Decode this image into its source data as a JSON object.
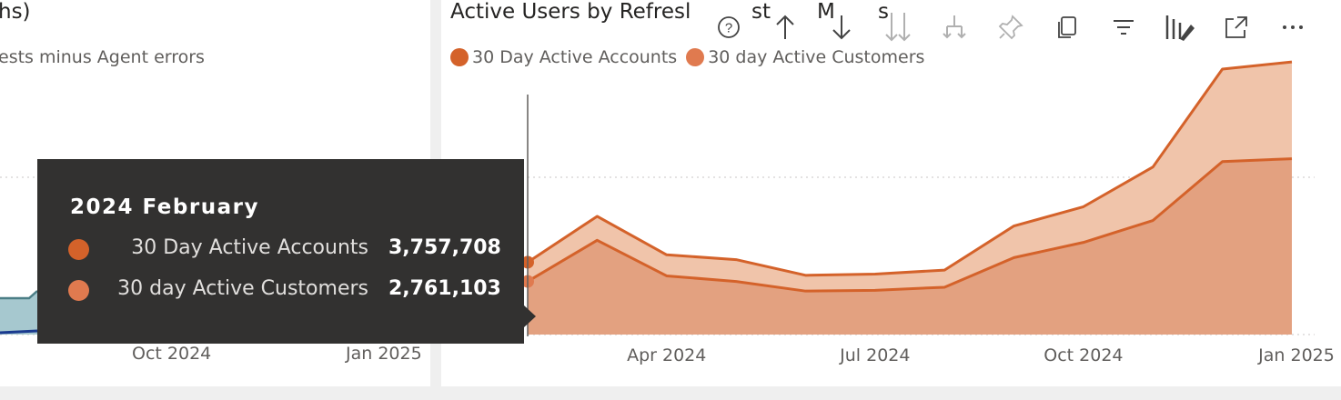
{
  "left_visual": {
    "title_fragment": "hs)",
    "subtitle_fragment": "ests minus Agent errors",
    "x_ticks": [
      "Oct 2024",
      "Jan 2025"
    ],
    "series_colors": [
      "#118dff",
      "#1a3a8f",
      "#4b7e86"
    ]
  },
  "right_visual": {
    "title": "Active Users by Refresh Date (Last 12 Months)",
    "title_visible": "Active Users by Refresl",
    "title_tail_a": "st",
    "title_tail_b": "M",
    "title_tail_c": "s",
    "legend": [
      {
        "label": "30 Day Active Accounts",
        "color": "#d4622a"
      },
      {
        "label": "30 day Active Customers",
        "color": "#e07a4f"
      }
    ]
  },
  "toolbar": {
    "icons": [
      {
        "name": "help-icon",
        "label": "?"
      },
      {
        "name": "drill-up-icon",
        "label": "↑"
      },
      {
        "name": "drill-down-icon",
        "label": "↓"
      },
      {
        "name": "expand-all-down-icon",
        "label": "↓↓"
      },
      {
        "name": "expand-hierarchy-icon",
        "label": "⑂"
      },
      {
        "name": "pin-icon",
        "label": "📌"
      },
      {
        "name": "copy-icon",
        "label": "❐"
      },
      {
        "name": "filter-icon",
        "label": "≡"
      },
      {
        "name": "format-visual-icon",
        "label": "✎"
      },
      {
        "name": "focus-mode-icon",
        "label": "⤢"
      },
      {
        "name": "more-options-icon",
        "label": "⋯"
      }
    ]
  },
  "tooltip": {
    "title": "2024 February",
    "rows": [
      {
        "label": "30 Day Active Accounts",
        "value": "3,757,708",
        "color": "#d4622a"
      },
      {
        "label": "30 day Active Customers",
        "value": "2,761,103",
        "color": "#e07a4f"
      }
    ]
  },
  "chart_data": {
    "type": "area",
    "title": "Active Users by Refresh Date (Last 12 Months)",
    "x": [
      "2024-02",
      "2024-03",
      "2024-04",
      "2024-05",
      "2024-06",
      "2024-07",
      "2024-08",
      "2024-09",
      "2024-10",
      "2024-11",
      "2024-12",
      "2025-01"
    ],
    "x_tick_labels": [
      "Apr 2024",
      "Jul 2024",
      "Oct 2024",
      "Jan 2025"
    ],
    "series": [
      {
        "name": "30 Day Active Accounts",
        "color": "#d4622a",
        "values": [
          3757708,
          6145000,
          4145000,
          3895000,
          3080000,
          3145000,
          3350000,
          5645000,
          6645000,
          8710000,
          13800000,
          14170000
        ]
      },
      {
        "name": "30 day Active Customers",
        "color": "#e07a4f",
        "values": [
          2761103,
          4900000,
          3050000,
          2760000,
          2260000,
          2300000,
          2460000,
          4000000,
          4790000,
          5930000,
          8990000,
          9140000
        ]
      }
    ],
    "ylim": [
      0,
      15500000
    ],
    "grid": true,
    "legend_position": "top-left"
  }
}
